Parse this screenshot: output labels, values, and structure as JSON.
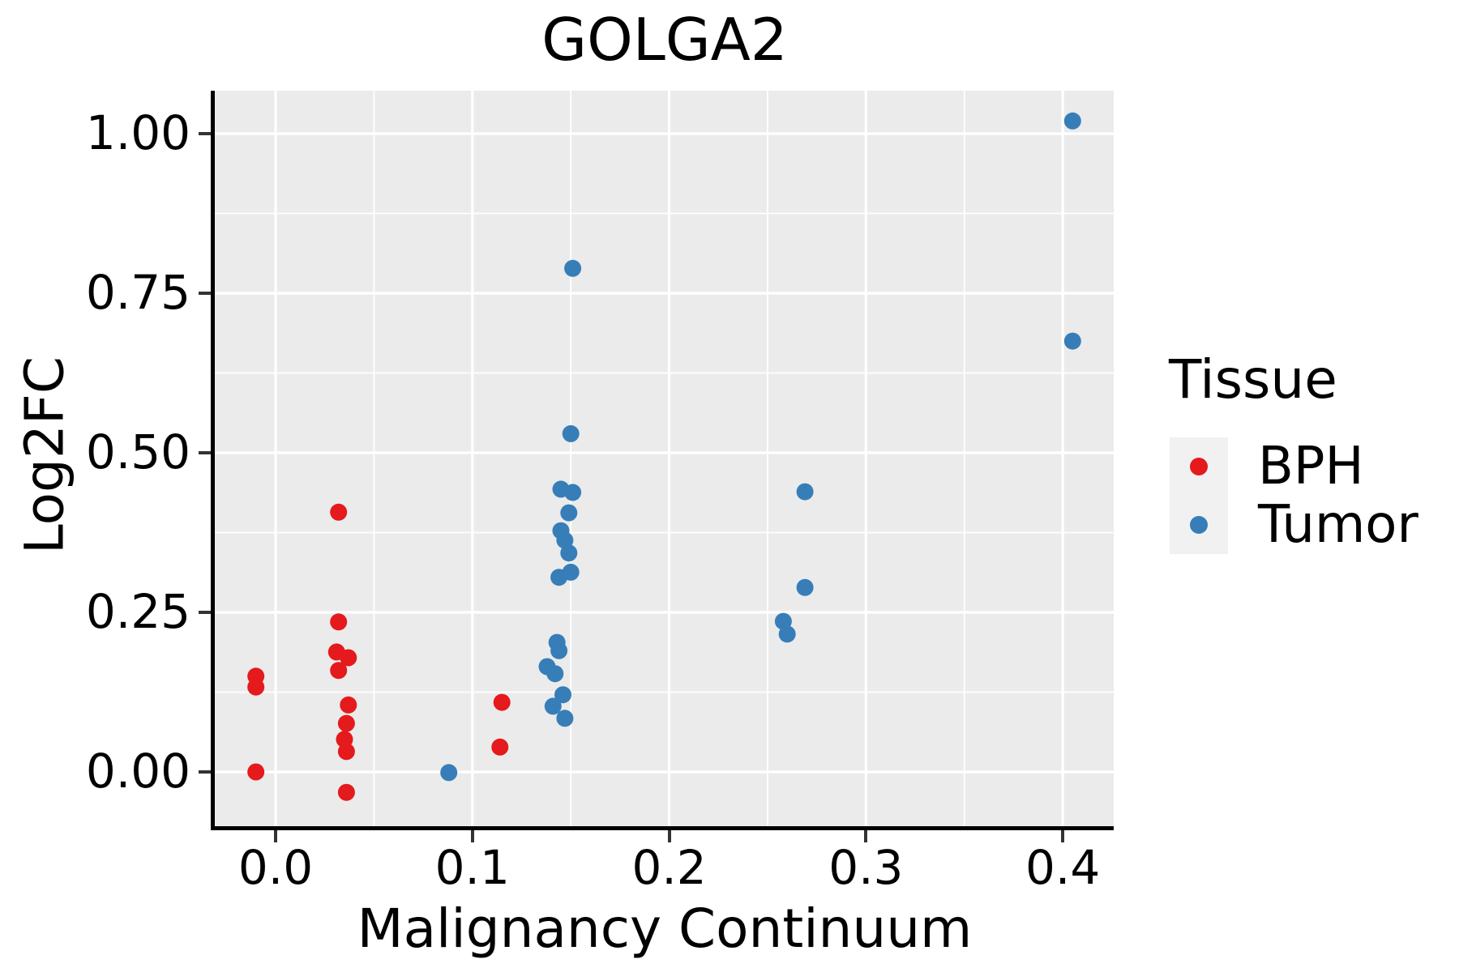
{
  "chart_data": {
    "type": "scatter",
    "title": "GOLGA2",
    "xlabel": "Malignancy Continuum",
    "ylabel": "Log2FC",
    "legend_title": "Tissue",
    "legend_position": "right",
    "grid": true,
    "panel_bg": "#EBEBEB",
    "grid_color": "#FFFFFF",
    "axis_color": "#000000",
    "tick_color": "#333333",
    "xlim": [
      -0.0309,
      0.4259
    ],
    "ylim": [
      -0.085,
      1.0673
    ],
    "x_major_ticks": [
      0.0,
      0.1,
      0.2,
      0.3,
      0.4
    ],
    "x_tick_labels": [
      "0.0",
      "0.1",
      "0.2",
      "0.3",
      "0.4"
    ],
    "x_minor_ticks": [
      0.05,
      0.15,
      0.25,
      0.35
    ],
    "y_major_ticks": [
      0.0,
      0.25,
      0.5,
      0.75,
      1.0
    ],
    "y_tick_labels": [
      "0.00",
      "0.25",
      "0.50",
      "0.75",
      "1.00"
    ],
    "y_minor_ticks": [
      0.125,
      0.375,
      0.625,
      0.875
    ],
    "point_radius": 10.5,
    "series": [
      {
        "name": "BPH",
        "color": "#E41A1C",
        "points": [
          [
            -0.01,
            0.15
          ],
          [
            -0.01,
            0.133
          ],
          [
            -0.01,
            0.0
          ],
          [
            0.032,
            0.407
          ],
          [
            0.032,
            0.235
          ],
          [
            0.031,
            0.188
          ],
          [
            0.037,
            0.179
          ],
          [
            0.032,
            0.159
          ],
          [
            0.037,
            0.105
          ],
          [
            0.036,
            0.076
          ],
          [
            0.035,
            0.051
          ],
          [
            0.036,
            0.032
          ],
          [
            0.036,
            -0.032
          ],
          [
            0.115,
            0.109
          ],
          [
            0.114,
            0.039
          ]
        ]
      },
      {
        "name": "Tumor",
        "color": "#377EB8",
        "points": [
          [
            0.088,
            -0.001
          ],
          [
            0.151,
            0.789
          ],
          [
            0.15,
            0.53
          ],
          [
            0.145,
            0.443
          ],
          [
            0.151,
            0.438
          ],
          [
            0.149,
            0.406
          ],
          [
            0.145,
            0.378
          ],
          [
            0.147,
            0.363
          ],
          [
            0.149,
            0.343
          ],
          [
            0.15,
            0.313
          ],
          [
            0.144,
            0.305
          ],
          [
            0.143,
            0.203
          ],
          [
            0.144,
            0.19
          ],
          [
            0.138,
            0.165
          ],
          [
            0.142,
            0.154
          ],
          [
            0.146,
            0.121
          ],
          [
            0.141,
            0.103
          ],
          [
            0.147,
            0.084
          ],
          [
            0.258,
            0.236
          ],
          [
            0.26,
            0.216
          ],
          [
            0.269,
            0.439
          ],
          [
            0.269,
            0.289
          ],
          [
            0.405,
            1.02
          ],
          [
            0.405,
            0.675
          ]
        ]
      }
    ]
  }
}
